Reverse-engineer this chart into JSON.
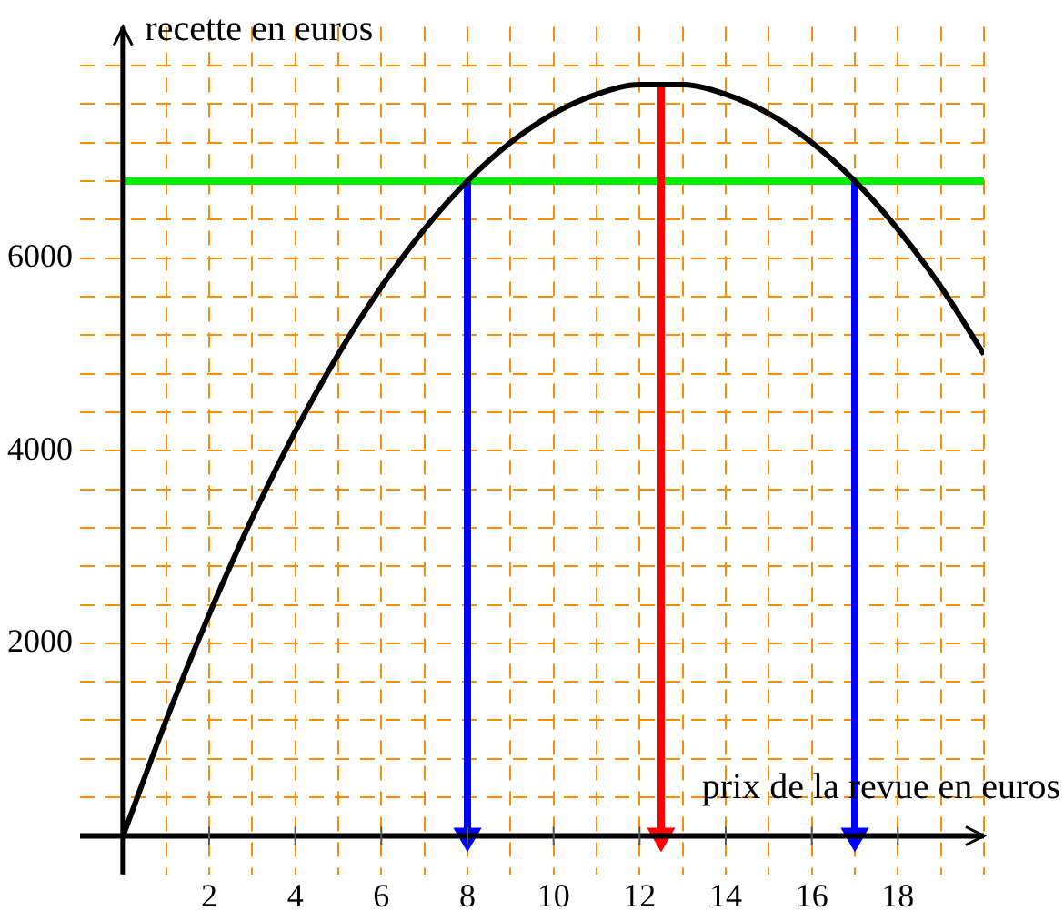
{
  "chart_data": {
    "type": "line",
    "xlabel": "prix de la revue en euros",
    "ylabel": "recette en euros",
    "series": [
      {
        "color": "#000000",
        "x": [
          0,
          1,
          2,
          3,
          4,
          5,
          6,
          7,
          8,
          9,
          10,
          11,
          12,
          12.5,
          13,
          14,
          15,
          16,
          17,
          18,
          19,
          20
        ],
        "values": [
          0,
          1200,
          2300,
          3300,
          4200,
          5000,
          5700,
          6300,
          6800,
          7200,
          7500,
          7700,
          7800,
          7800,
          7800,
          7700,
          7500,
          7200,
          6800,
          6300,
          5700,
          5000
        ]
      },
      {
        "color": "#0000ff",
        "marker": "triangle",
        "x": [
          8,
          8
        ],
        "values": [
          6800,
          0
        ]
      },
      {
        "color": "#ff0000",
        "marker": "triangle",
        "x": [
          12.5,
          12.5
        ],
        "values": [
          7800,
          0
        ]
      },
      {
        "color": "#0000ff",
        "marker": "triangle",
        "x": [
          17,
          17
        ],
        "values": [
          6800,
          0
        ]
      }
    ],
    "xlim": [
      -1,
      20
    ],
    "ylim": [
      -400,
      8400
    ],
    "xticks": [
      {
        "value": 0,
        "label": null
      },
      {
        "value": 1,
        "label": null
      },
      2,
      {
        "value": 3,
        "label": null
      },
      4,
      {
        "value": 5,
        "label": null
      },
      6,
      {
        "value": 7,
        "label": null
      },
      8,
      {
        "value": 9,
        "label": null
      },
      10,
      {
        "value": 11,
        "label": null
      },
      12,
      {
        "value": 13,
        "label": null
      },
      14,
      {
        "value": 15,
        "label": null
      },
      16,
      {
        "value": 17,
        "label": null
      },
      18,
      {
        "value": 19,
        "label": null
      },
      {
        "value": 20,
        "label": null
      }
    ],
    "yticks": [
      {
        "value": 0,
        "label": null
      },
      {
        "value": 400,
        "label": null
      },
      {
        "value": 800,
        "label": null
      },
      {
        "value": 1200,
        "label": null
      },
      {
        "value": 1600,
        "label": null
      },
      2000,
      {
        "value": 2400,
        "label": null
      },
      {
        "value": 2800,
        "label": null
      },
      {
        "value": 3200,
        "label": null
      },
      {
        "value": 3600,
        "label": null
      },
      4000,
      {
        "value": 4400,
        "label": null
      },
      {
        "value": 4800,
        "label": null
      },
      {
        "value": 5200,
        "label": null
      },
      {
        "value": 5600,
        "label": null
      },
      6000,
      {
        "value": 6400,
        "label": null
      },
      {
        "value": 6800,
        "label": null
      },
      {
        "value": 7200,
        "label": null
      },
      {
        "value": 7600,
        "label": null
      },
      {
        "value": 8000,
        "label": null
      }
    ],
    "grid": true,
    "legend": false,
    "marker": "none",
    "line_style": "solid",
    "ref_lines": [
      {
        "axis": "y",
        "value": 6800,
        "label": null,
        "color": "#00ee00"
      }
    ]
  }
}
